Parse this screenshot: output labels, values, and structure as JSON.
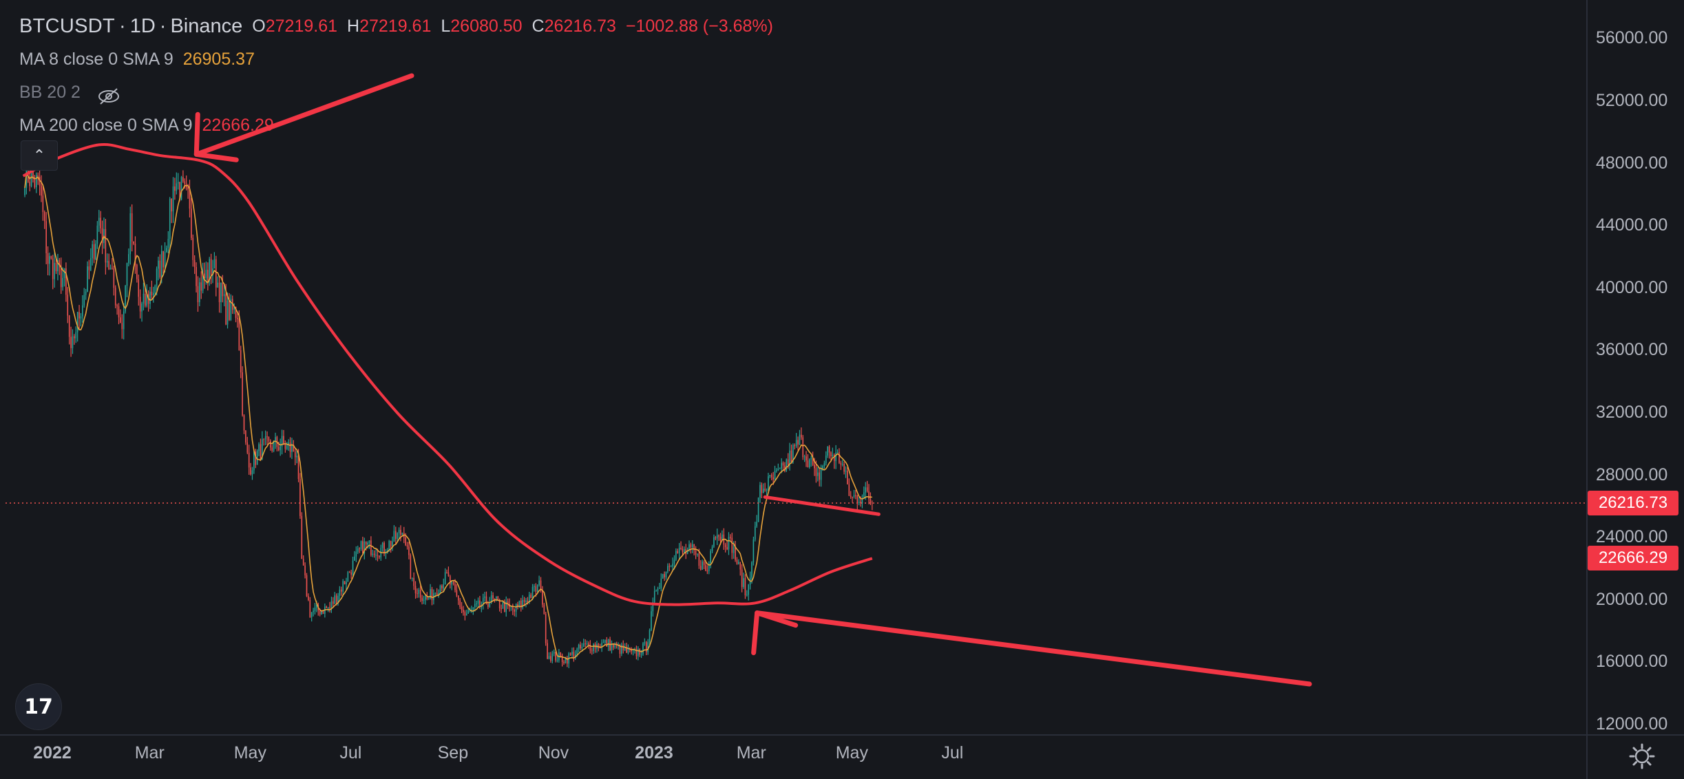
{
  "header": {
    "symbol": "BTCUSDT",
    "timeframe": "1D",
    "exchange": "Binance",
    "open_label": "O",
    "open": "27219.61",
    "high_label": "H",
    "high": "27219.61",
    "low_label": "L",
    "low": "26080.50",
    "close_label": "C",
    "close": "26216.73",
    "change": "−1002.88 (−3.68%)",
    "indicators": [
      {
        "label": "MA 8 close 0 SMA 9",
        "value": "26905.37"
      },
      {
        "label": "BB 20 2",
        "value": ""
      },
      {
        "label": "MA 200 close 0 SMA 9",
        "value": "22666.29"
      }
    ]
  },
  "price_axis": {
    "ticks": [
      "56000.00",
      "52000.00",
      "48000.00",
      "44000.00",
      "40000.00",
      "36000.00",
      "32000.00",
      "28000.00",
      "24000.00",
      "20000.00",
      "16000.00",
      "12000.00"
    ],
    "last_price_tag": "26216.73",
    "ma200_tag": "22666.29"
  },
  "time_axis": {
    "ticks": [
      "2022",
      "Mar",
      "May",
      "Jul",
      "Sep",
      "Nov",
      "2023",
      "Mar",
      "May",
      "Jul"
    ]
  },
  "colors": {
    "background": "#16181d",
    "up": "#26a69a",
    "down": "#ef5350",
    "ma8": "#e8a33b",
    "ma200": "#f23645",
    "annotation": "#f23645"
  },
  "chart_data": {
    "type": "candlestick",
    "symbol": "BTCUSDT",
    "interval": "1D",
    "ylim": [
      11000,
      58000
    ],
    "xlim": [
      "2021-12-26",
      "2023-07-25"
    ],
    "grid": false,
    "close_path": [
      [
        "2021-12-27",
        47500
      ],
      [
        "2022-01-05",
        46500
      ],
      [
        "2022-01-10",
        41800
      ],
      [
        "2022-01-20",
        40500
      ],
      [
        "2022-01-24",
        35500
      ],
      [
        "2022-01-26",
        37000
      ],
      [
        "2022-02-05",
        41500
      ],
      [
        "2022-02-10",
        44500
      ],
      [
        "2022-02-14",
        42500
      ],
      [
        "2022-02-24",
        37500
      ],
      [
        "2022-03-01",
        44000
      ],
      [
        "2022-03-07",
        38500
      ],
      [
        "2022-03-15",
        40000
      ],
      [
        "2022-03-22",
        42500
      ],
      [
        "2022-03-28",
        47000
      ],
      [
        "2022-04-05",
        45500
      ],
      [
        "2022-04-11",
        40000
      ],
      [
        "2022-04-20",
        41500
      ],
      [
        "2022-04-28",
        38500
      ],
      [
        "2022-05-05",
        38500
      ],
      [
        "2022-05-09",
        30500
      ],
      [
        "2022-05-12",
        28500
      ],
      [
        "2022-05-20",
        29800
      ],
      [
        "2022-06-01",
        30000
      ],
      [
        "2022-06-10",
        29500
      ],
      [
        "2022-06-13",
        22500
      ],
      [
        "2022-06-18",
        19200
      ],
      [
        "2022-06-30",
        19500
      ],
      [
        "2022-07-08",
        21000
      ],
      [
        "2022-07-20",
        23500
      ],
      [
        "2022-08-01",
        23200
      ],
      [
        "2022-08-14",
        24500
      ],
      [
        "2022-08-19",
        21000
      ],
      [
        "2022-08-28",
        20000
      ],
      [
        "2022-09-09",
        21500
      ],
      [
        "2022-09-20",
        19000
      ],
      [
        "2022-10-05",
        20000
      ],
      [
        "2022-10-20",
        19300
      ],
      [
        "2022-11-05",
        21000
      ],
      [
        "2022-11-09",
        16500
      ],
      [
        "2022-11-20",
        16200
      ],
      [
        "2022-12-01",
        17000
      ],
      [
        "2022-12-15",
        17200
      ],
      [
        "2022-12-31",
        16500
      ],
      [
        "2023-01-08",
        17000
      ],
      [
        "2023-01-14",
        20800
      ],
      [
        "2023-01-25",
        23000
      ],
      [
        "2023-02-05",
        23100
      ],
      [
        "2023-02-14",
        21800
      ],
      [
        "2023-02-18",
        24500
      ],
      [
        "2023-03-01",
        23500
      ],
      [
        "2023-03-10",
        20200
      ],
      [
        "2023-03-18",
        27000
      ],
      [
        "2023-03-31",
        28200
      ],
      [
        "2023-04-11",
        30200
      ],
      [
        "2023-04-19",
        28500
      ],
      [
        "2023-04-21",
        27500
      ],
      [
        "2023-04-28",
        29500
      ],
      [
        "2023-05-06",
        29000
      ],
      [
        "2023-05-12",
        26500
      ],
      [
        "2023-05-22",
        26800
      ],
      [
        "2023-05-25",
        26217
      ]
    ],
    "ma8": {
      "name": "MA 8 close 0 SMA 9",
      "last": 26905.37
    },
    "ma200": {
      "name": "MA 200 close 0 SMA 9",
      "last": 22666.29,
      "points": [
        [
          "2021-12-26",
          47200
        ],
        [
          "2022-01-15",
          48300
        ],
        [
          "2022-02-10",
          49200
        ],
        [
          "2022-03-01",
          48900
        ],
        [
          "2022-03-20",
          48500
        ],
        [
          "2022-04-12",
          48200
        ],
        [
          "2022-04-25",
          47500
        ],
        [
          "2022-05-12",
          45500
        ],
        [
          "2022-06-10",
          40500
        ],
        [
          "2022-07-10",
          36000
        ],
        [
          "2022-08-10",
          32000
        ],
        [
          "2022-09-10",
          28700
        ],
        [
          "2022-10-10",
          25000
        ],
        [
          "2022-11-10",
          22500
        ],
        [
          "2022-12-10",
          20800
        ],
        [
          "2023-01-01",
          19900
        ],
        [
          "2023-01-25",
          19700
        ],
        [
          "2023-02-20",
          19800
        ],
        [
          "2023-03-15",
          19800
        ],
        [
          "2023-04-05",
          20600
        ],
        [
          "2023-04-30",
          21800
        ],
        [
          "2023-05-25",
          22666
        ]
      ]
    },
    "last_price": 26216.73,
    "annotations": [
      {
        "type": "arrow",
        "pointing_to": [
          "2022-04-08",
          48500
        ]
      },
      {
        "type": "arrow",
        "pointing_to": [
          "2023-03-12",
          19700
        ]
      },
      {
        "type": "trendline",
        "from": [
          "2023-03-21",
          26600
        ],
        "to": [
          "2023-05-29",
          25500
        ]
      }
    ]
  }
}
